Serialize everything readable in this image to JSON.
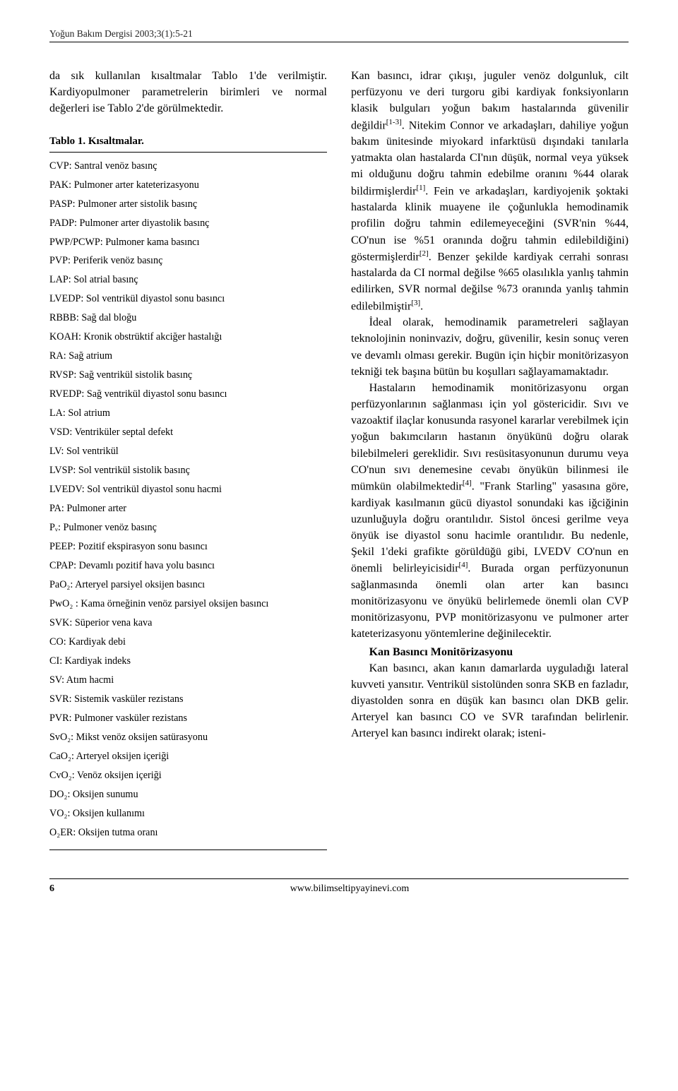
{
  "running_head": "Yoğun Bakım Dergisi 2003;3(1):5-21",
  "left": {
    "lead": "da sık kullanılan kısaltmalar Tablo 1'de verilmiştir. Kardiyopulmoner parametrelerin birimleri ve normal değerleri ise Tablo 2'de görülmektedir.",
    "table_title": "Tablo 1. Kısaltmalar.",
    "abbrev": [
      "CVP: Santral venöz basınç",
      "PAK: Pulmoner arter kateterizasyonu",
      "PASP: Pulmoner arter sistolik basınç",
      "PADP: Pulmoner arter diyastolik basınç",
      "PWP/PCWP: Pulmoner kama basıncı",
      "PVP: Periferik venöz basınç",
      "LAP: Sol atrial basınç",
      "LVEDP: Sol ventrikül diyastol sonu basıncı",
      "RBBB: Sağ dal bloğu",
      "KOAH: Kronik obstrüktif akciğer hastalığı",
      "RA: Sağ atrium",
      "RVSP: Sağ ventrikül sistolik basınç",
      "RVEDP: Sağ ventrikül diyastol sonu basıncı",
      "LA: Sol atrium",
      "VSD: Ventriküler septal defekt",
      "LV: Sol ventrikül",
      "LVSP: Sol ventrikül sistolik basınç",
      "LVEDV: Sol ventrikül diyastol sonu hacmi",
      "PA: Pulmoner arter",
      "Pᵥ: Pulmoner venöz basınç",
      "PEEP: Pozitif ekspirasyon sonu basıncı",
      "CPAP: Devamlı pozitif hava yolu basıncı",
      "PaO₂: Arteryel parsiyel oksijen basıncı",
      "PwO₂ : Kama örneğinin venöz parsiyel oksijen basıncı",
      "SVK: Süperior vena kava",
      "CO: Kardiyak debi",
      "CI: Kardiyak indeks",
      "SV: Atım hacmi",
      "SVR: Sistemik vasküler rezistans",
      "PVR: Pulmoner vasküler rezistans",
      "SvO₂: Mikst venöz oksijen satürasyonu",
      "CaO₂: Arteryel oksijen içeriği",
      "CvO₂: Venöz oksijen içeriği",
      "DO₂: Oksijen sunumu",
      "VO₂: Oksijen kullanımı",
      "O₂ER: Oksijen tutma oranı"
    ]
  },
  "right": {
    "p1a": "Kan basıncı, idrar çıkışı, juguler venöz dolgunluk, cilt perfüzyonu ve deri turgoru gibi kardiyak fonksiyonların klasik bulguları yoğun bakım hastalarında güvenilir değildir",
    "p1b": ". Nitekim Connor ve arkadaşları, dahiliye yoğun bakım ünitesinde miyokard infarktüsü dışındaki tanılarla yatmakta olan hastalarda CI'nın düşük, normal veya yüksek mi olduğunu doğru tahmin edebilme oranını %44 olarak bildirmişlerdir",
    "p1c": ". Fein ve arkadaşları, kardiyojenik şoktaki hastalarda klinik muayene ile çoğunlukla hemodinamik profilin doğru tahmin edilemeyeceğini (SVR'nin %44, CO'nun ise %51 oranında doğru tahmin edilebildiğini) göstermişlerdir",
    "p1d": ". Benzer şekilde kardiyak cerrahi sonrası hastalarda da CI normal değilse %65 olasılıkla yanlış tahmin edilirken, SVR normal değilse %73 oranında yanlış tahmin edilebilmiştir",
    "p1e": ".",
    "ref1": "[1-3]",
    "ref2": "[1]",
    "ref3": "[2]",
    "ref4": "[3]",
    "p2": "İdeal olarak, hemodinamik parametreleri sağlayan teknolojinin noninvaziv, doğru, güvenilir, kesin sonuç veren ve devamlı olması gerekir. Bugün için hiçbir monitörizasyon tekniği tek başına bütün bu koşulları sağlayamamaktadır.",
    "p3a": "Hastaların hemodinamik monitörizasyonu organ perfüzyonlarının sağlanması için yol göstericidir. Sıvı ve vazoaktif ilaçlar konusunda rasyonel kararlar verebilmek için yoğun bakımcıların hastanın önyükünü doğru olarak bilebilmeleri gereklidir. Sıvı resüsitasyonunun durumu veya CO'nun sıvı denemesine cevabı önyükün bilinmesi ile mümkün olabilmektedir",
    "p3b": ". \"Frank Starling\" yasasına göre, kardiyak kasılmanın gücü diyastol sonundaki kas iğciğinin uzunluğuyla doğru orantılıdır. Sistol öncesi gerilme veya önyük ise diyastol sonu hacimle orantılıdır. Bu nedenle, Şekil 1'deki grafikte görüldüğü gibi, LVEDV CO'nun en önemli belirleyicisidir",
    "p3c": ". Burada organ perfüzyonunun sağlanmasında önemli olan arter kan basıncı monitörizasyonu ve önyükü belirlemede önemli olan CVP monitörizasyonu, PVP monitörizasyonu ve pulmoner arter kateterizasyonu yöntemlerine değinilecektir.",
    "ref5": "[4]",
    "ref6": "[4]",
    "section": "Kan Basıncı Monitörizasyonu",
    "p4": "Kan basıncı, akan kanın damarlarda uyguladığı lateral kuvveti yansıtır. Ventrikül sistolünden sonra SKB en fazladır, diyastolden sonra en düşük kan basıncı olan DKB gelir. Arteryel kan basıncı CO ve SVR tarafından belirlenir. Arteryel kan basıncı indirekt olarak; isteni-"
  },
  "footer": {
    "page": "6",
    "url": "www.bilimseltipyayinevi.com"
  }
}
